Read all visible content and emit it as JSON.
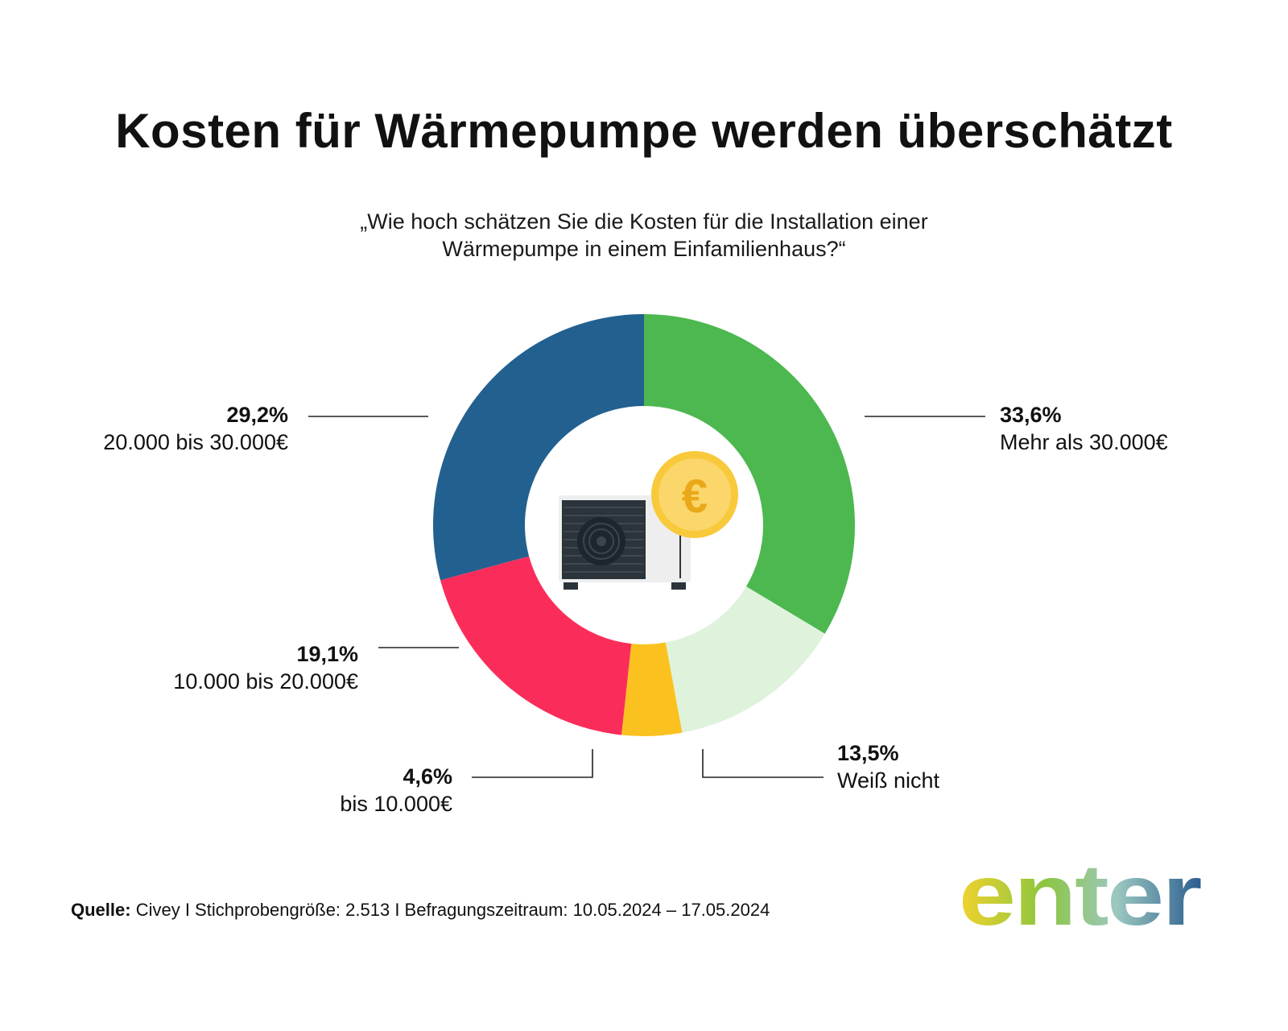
{
  "title": "Kosten für Wärmepumpe werden überschätzt",
  "subtitle_lines": [
    "„Wie hoch schätzen Sie die Kosten für die Installation einer",
    "Wärmepumpe in einem Einfamilienhaus?“"
  ],
  "chart_data": {
    "type": "pie",
    "variant": "donut",
    "slices": [
      {
        "label": "Mehr als 30.000€",
        "value": 33.6,
        "value_label": "33,6%",
        "color": "#4cb84f"
      },
      {
        "label": "Weiß nicht",
        "value": 13.5,
        "value_label": "13,5%",
        "color": "#dff3dc"
      },
      {
        "label": "bis 10.000€",
        "value": 4.6,
        "value_label": "4,6%",
        "color": "#fbc21f"
      },
      {
        "label": "10.000 bis 20.000€",
        "value": 19.1,
        "value_label": "19,1%",
        "color": "#fa2d5a"
      },
      {
        "label": "20.000 bis 30.000€",
        "value": 29.2,
        "value_label": "29,2%",
        "color": "#22608f"
      }
    ],
    "start_angle": "12 o'clock",
    "direction": "clockwise",
    "center_icon": "heat-pump-with-euro-coin-icon"
  },
  "source": {
    "label": "Quelle:",
    "text": "Civey I Stichprobengröße: 2.513 I Befragungszeitraum: 10.05.2024 – 17.05.2024"
  },
  "logo": {
    "text": "enter",
    "gradient_colors": [
      "#f2d22e",
      "#8cc63f",
      "#9cc8c0",
      "#2a5d8f"
    ]
  }
}
